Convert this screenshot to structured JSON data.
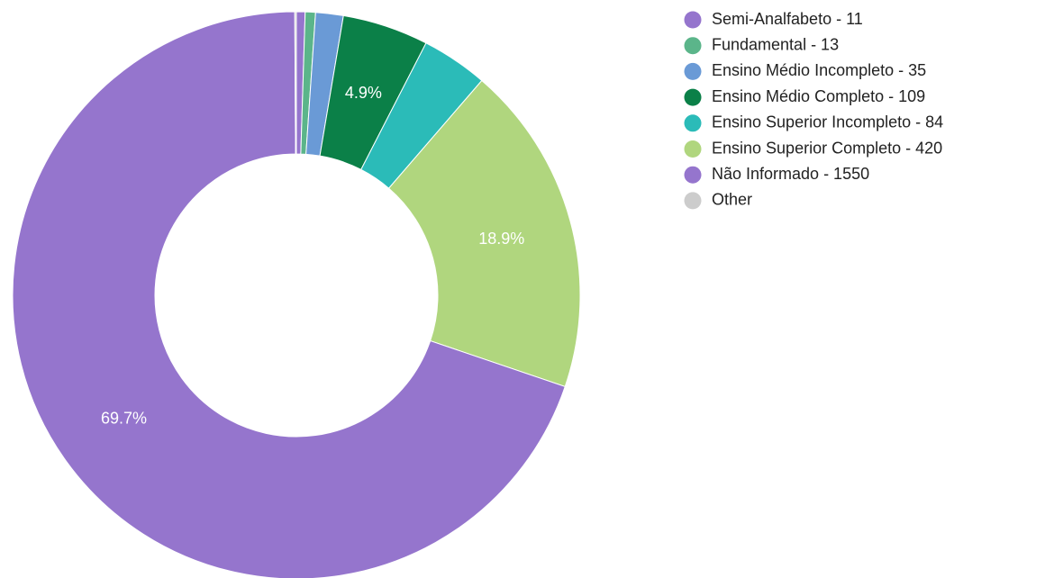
{
  "chart_data": {
    "type": "donut",
    "categories": [
      "Semi-Analfabeto - 11",
      "Fundamental - 13",
      "Ensino Médio Incompleto - 35",
      "Ensino Médio Completo - 109",
      "Ensino Superior Incompleto - 84",
      "Ensino Superior Completo - 420",
      "Não Informado - 1550",
      "Other"
    ],
    "values": [
      11,
      13,
      35,
      109,
      84,
      420,
      1550,
      2
    ],
    "value_labels": [
      null,
      null,
      null,
      "4.9%",
      null,
      "18.9%",
      "69.7%",
      null
    ],
    "colors": [
      "#9575cd",
      "#5bb58a",
      "#6a9ad6",
      "#0b8048",
      "#2bbbb8",
      "#b0d67e",
      "#9575cd",
      "#cccccc"
    ],
    "legend": "right"
  }
}
